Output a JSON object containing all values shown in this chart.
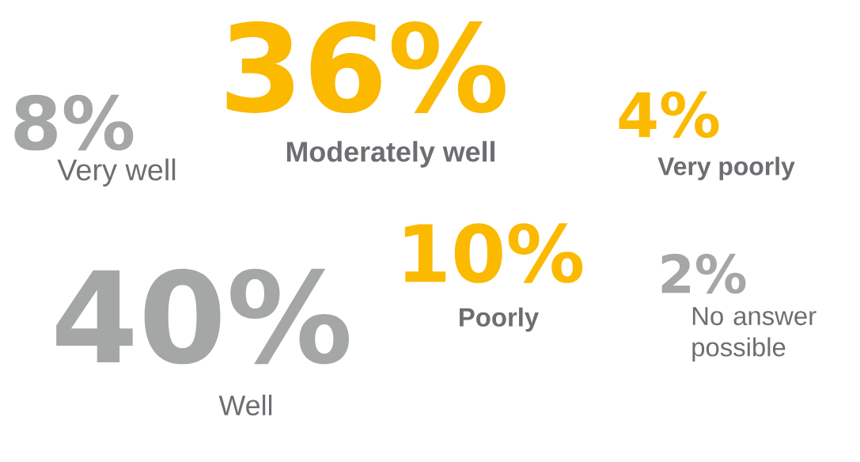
{
  "chart_data": {
    "type": "other",
    "categories": [
      "Very well",
      "Moderately well",
      "Very poorly",
      "Well",
      "Poorly",
      "No answer possible"
    ],
    "values": [
      8,
      36,
      4,
      40,
      10,
      2
    ],
    "value_labels": [
      "8%",
      "36%",
      "4%",
      "40%",
      "10%",
      "2%"
    ],
    "colors": [
      "#a5a6a6",
      "#fbb900",
      "#fbb900",
      "#a5a6a6",
      "#fbb900",
      "#a5a6a6"
    ]
  }
}
